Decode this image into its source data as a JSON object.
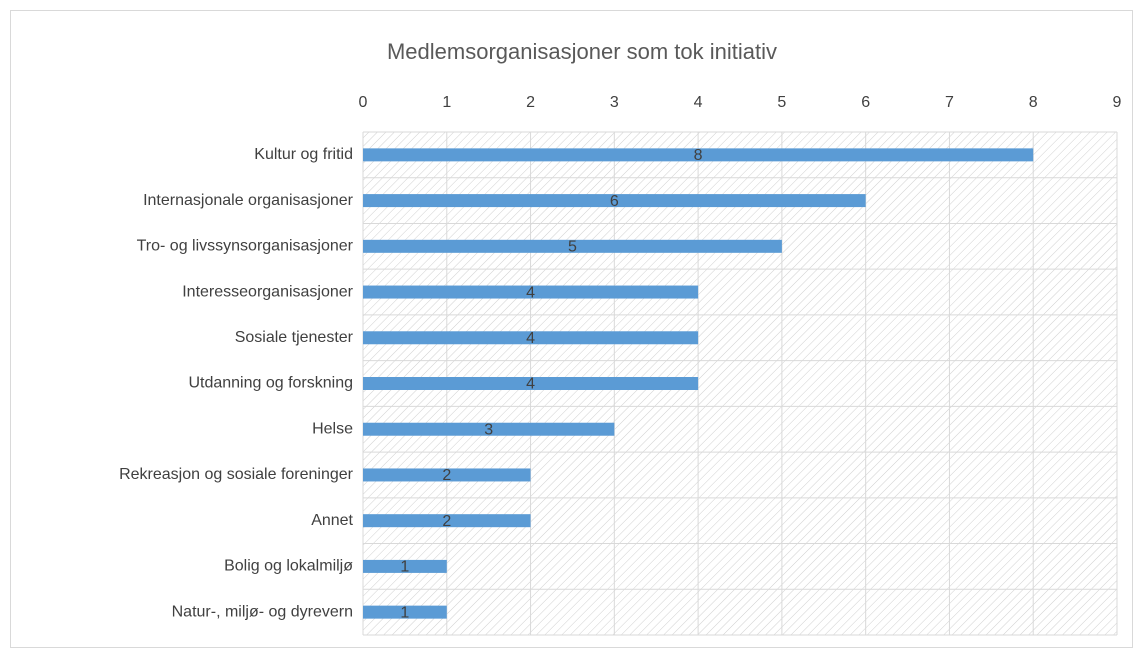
{
  "chart_data": {
    "type": "bar",
    "orientation": "horizontal",
    "title": "Medlemsorganisasjoner som tok initiativ",
    "categories": [
      "Kultur og fritid",
      "Internasjonale organisasjoner",
      "Tro- og livssynsorganisasjoner",
      "Interesseorganisasjoner",
      "Sosiale tjenester",
      "Utdanning og forskning",
      "Helse",
      "Rekreasjon og sosiale foreninger",
      "Annet",
      "Bolig og lokalmiljø",
      "Natur-, miljø- og dyrevern"
    ],
    "values": [
      8,
      6,
      5,
      4,
      4,
      4,
      3,
      2,
      2,
      1,
      1
    ],
    "color": "#5b9bd5",
    "xlim": [
      0,
      9
    ],
    "xticks": [
      0,
      1,
      2,
      3,
      4,
      5,
      6,
      7,
      8,
      9
    ],
    "grid": true
  }
}
